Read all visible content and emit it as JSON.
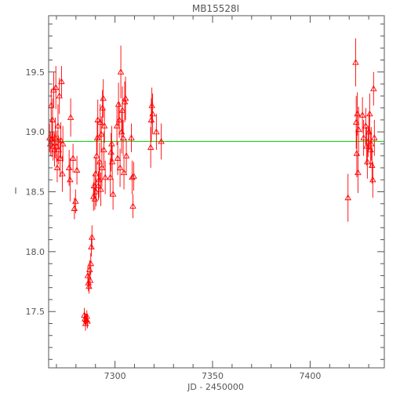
{
  "chart_data": {
    "type": "scatter",
    "title": "MB15528I",
    "xlabel": "JD - 2450000",
    "ylabel": "I",
    "xlim": [
      7266,
      7438
    ],
    "ylim": [
      19.97,
      17.03
    ],
    "y_inverted": true,
    "xticks": [
      7300,
      7350,
      7400
    ],
    "yticks": [
      17.5,
      18.0,
      18.5,
      19.0,
      19.5
    ],
    "ytick_labels": [
      "17.5",
      "18.0",
      "18.5",
      "19.0",
      "19.5"
    ],
    "grid": false,
    "colors": {
      "points": "#ff0000",
      "baseline": "#00cc00",
      "axes": "#555555"
    },
    "baseline": {
      "y": 18.92
    },
    "marker": "triangle-open",
    "series": [
      {
        "points": [
          [
            7266.5,
            18.95,
            0.12
          ],
          [
            7266.9,
            18.9,
            0.1
          ],
          [
            7267.3,
            19.22,
            0.14
          ],
          [
            7267.6,
            18.94,
            0.15
          ],
          [
            7268.0,
            19.1,
            0.18
          ],
          [
            7268.3,
            18.88,
            0.12
          ],
          [
            7268.6,
            19.35,
            0.15
          ],
          [
            7269.0,
            18.85,
            0.14
          ],
          [
            7269.4,
            18.95,
            0.17
          ],
          [
            7269.7,
            19.37,
            0.18
          ],
          [
            7270.1,
            18.88,
            0.13
          ],
          [
            7270.4,
            18.7,
            0.12
          ],
          [
            7270.8,
            19.05,
            0.18
          ],
          [
            7271.1,
            18.85,
            0.12
          ],
          [
            7271.5,
            19.3,
            0.15
          ],
          [
            7271.9,
            18.78,
            0.16
          ],
          [
            7272.2,
            18.93,
            0.15
          ],
          [
            7272.6,
            19.42,
            0.13
          ],
          [
            7273.0,
            18.65,
            0.15
          ],
          [
            7273.3,
            18.9,
            0.15
          ],
          [
            7276.5,
            18.7,
            0.15
          ],
          [
            7277.0,
            18.6,
            0.18
          ],
          [
            7277.3,
            19.12,
            0.16
          ],
          [
            7278.5,
            18.78,
            0.12
          ],
          [
            7279.2,
            18.36,
            0.09
          ],
          [
            7279.8,
            18.42,
            0.1
          ],
          [
            7280.5,
            18.68,
            0.12
          ],
          [
            7284.3,
            17.47,
            0.06
          ],
          [
            7284.6,
            17.44,
            0.05
          ],
          [
            7284.9,
            17.4,
            0.06
          ],
          [
            7285.2,
            17.43,
            0.05
          ],
          [
            7285.6,
            17.46,
            0.05
          ],
          [
            7285.9,
            17.42,
            0.06
          ],
          [
            7286.1,
            17.8,
            0.08
          ],
          [
            7286.4,
            17.74,
            0.07
          ],
          [
            7286.7,
            17.71,
            0.06
          ],
          [
            7287.0,
            17.85,
            0.08
          ],
          [
            7287.3,
            17.76,
            0.07
          ],
          [
            7287.6,
            17.9,
            0.09
          ],
          [
            7287.9,
            18.04,
            0.08
          ],
          [
            7288.2,
            18.12,
            0.1
          ],
          [
            7289.0,
            18.46,
            0.12
          ],
          [
            7289.3,
            18.55,
            0.1
          ],
          [
            7289.7,
            18.44,
            0.09
          ],
          [
            7290.0,
            18.65,
            0.14
          ],
          [
            7290.3,
            18.5,
            0.12
          ],
          [
            7290.6,
            18.8,
            0.15
          ],
          [
            7290.9,
            18.95,
            0.14
          ],
          [
            7291.2,
            19.1,
            0.17
          ],
          [
            7291.5,
            18.55,
            0.12
          ],
          [
            7291.8,
            18.6,
            0.15
          ],
          [
            7292.1,
            18.75,
            0.16
          ],
          [
            7292.4,
            19.08,
            0.15
          ],
          [
            7292.7,
            18.52,
            0.14
          ],
          [
            7293.0,
            18.98,
            0.15
          ],
          [
            7293.3,
            18.7,
            0.16
          ],
          [
            7293.6,
            19.2,
            0.15
          ],
          [
            7294.0,
            19.28,
            0.16
          ],
          [
            7294.3,
            18.85,
            0.15
          ],
          [
            7294.6,
            19.05,
            0.14
          ],
          [
            7295.0,
            18.62,
            0.14
          ],
          [
            7297.6,
            18.62,
            0.16
          ],
          [
            7298.0,
            18.83,
            0.16
          ],
          [
            7298.3,
            18.9,
            0.15
          ],
          [
            7298.6,
            18.75,
            0.14
          ],
          [
            7299.0,
            18.48,
            0.13
          ],
          [
            7301.0,
            19.05,
            0.16
          ],
          [
            7301.4,
            18.78,
            0.14
          ],
          [
            7301.8,
            19.23,
            0.18
          ],
          [
            7302.2,
            19.1,
            0.15
          ],
          [
            7302.6,
            18.7,
            0.16
          ],
          [
            7303.0,
            19.5,
            0.22
          ],
          [
            7303.4,
            19.0,
            0.18
          ],
          [
            7303.8,
            19.18,
            0.2
          ],
          [
            7304.2,
            18.95,
            0.15
          ],
          [
            7304.6,
            18.66,
            0.14
          ],
          [
            7305.0,
            19.25,
            0.17
          ],
          [
            7305.4,
            19.28,
            0.18
          ],
          [
            7305.8,
            18.8,
            0.14
          ],
          [
            7308.4,
            18.95,
            0.12
          ],
          [
            7308.8,
            18.62,
            0.14
          ],
          [
            7309.2,
            18.38,
            0.1
          ],
          [
            7309.6,
            18.63,
            0.12
          ],
          [
            7318.3,
            18.87,
            0.17
          ],
          [
            7318.6,
            19.1,
            0.18
          ],
          [
            7318.9,
            19.22,
            0.15
          ],
          [
            7319.3,
            19.15,
            0.17
          ],
          [
            7321.2,
            19.0,
            0.15
          ],
          [
            7323.7,
            18.92,
            0.15
          ],
          [
            7419.4,
            18.45,
            0.2
          ],
          [
            7423.3,
            19.58,
            0.2
          ],
          [
            7423.6,
            19.08,
            0.22
          ],
          [
            7423.9,
            18.82,
            0.2
          ],
          [
            7424.2,
            19.15,
            0.18
          ],
          [
            7424.5,
            18.66,
            0.17
          ],
          [
            7424.8,
            19.02,
            0.19
          ],
          [
            7426.8,
            19.14,
            0.15
          ],
          [
            7427.4,
            18.95,
            0.15
          ],
          [
            7428.5,
            19.05,
            0.15
          ],
          [
            7428.9,
            18.88,
            0.16
          ],
          [
            7429.3,
            18.75,
            0.14
          ],
          [
            7429.7,
            18.92,
            0.13
          ],
          [
            7430.1,
            19.0,
            0.15
          ],
          [
            7430.5,
            19.15,
            0.17
          ],
          [
            7430.9,
            18.85,
            0.15
          ],
          [
            7431.3,
            18.9,
            0.14
          ],
          [
            7431.7,
            18.72,
            0.15
          ],
          [
            7432.1,
            18.6,
            0.15
          ],
          [
            7432.5,
            19.36,
            0.14
          ],
          [
            7432.9,
            18.95,
            0.15
          ]
        ]
      }
    ]
  }
}
